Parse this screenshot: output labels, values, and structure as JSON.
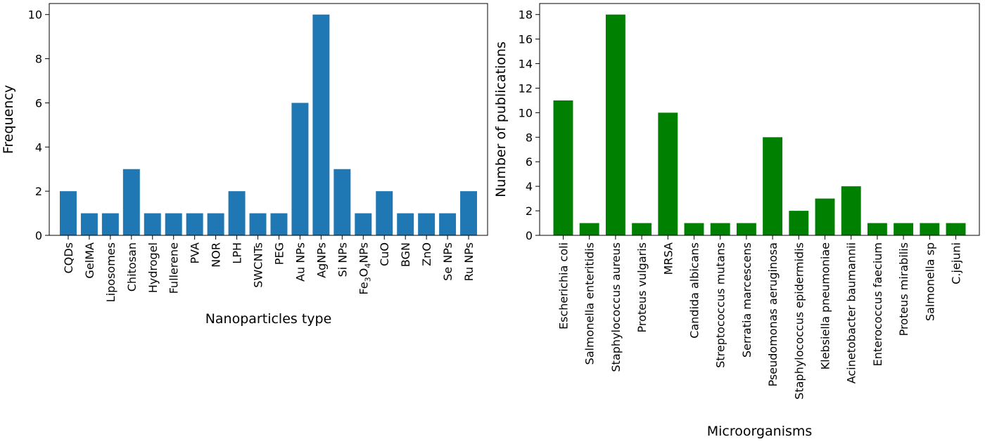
{
  "chart_data": [
    {
      "type": "bar",
      "xlabel": "Nanoparticles type",
      "ylabel": "Frequency",
      "ylim": [
        0,
        10.5
      ],
      "yticks": [
        "0",
        "2",
        "4",
        "6",
        "8",
        "10"
      ],
      "color": "#1f77b4",
      "categories": [
        "CQDs",
        "GelMA",
        "Liposomes",
        "Chitosan",
        "Hydrogel",
        "Fullerene",
        "PVA",
        "NOR",
        "LPH",
        "SWCNTs",
        "PEG",
        "Au NPs",
        "AgNPs",
        "Si NPs",
        "Fe3O4NPs",
        "CuO",
        "BGN",
        "ZnO",
        "Se NPs",
        "Ru NPs"
      ],
      "values": [
        2,
        1,
        1,
        3,
        1,
        1,
        1,
        1,
        2,
        1,
        1,
        6,
        10,
        3,
        1,
        2,
        1,
        1,
        1,
        2
      ]
    },
    {
      "type": "bar",
      "xlabel": "Microorganisms",
      "ylabel": "Number of publications",
      "ylim": [
        0,
        18.9
      ],
      "yticks": [
        "0",
        "2",
        "4",
        "6",
        "8",
        "10",
        "12",
        "14",
        "16",
        "18"
      ],
      "color": "#008000",
      "categories": [
        "Escherichia coli",
        "Salmonella enteritidis",
        "Staphylococcus aureus",
        "Proteus vulgaris",
        "MRSA",
        "Candida albicans",
        "Streptococcus mutans",
        "Serratia marcescens",
        "Pseudomonas aeruginosa",
        "Staphylococcus epidermidis",
        "Klebsiella pneumoniae",
        "Acinetobacter baumannii",
        "Enterococcus faecium",
        "Proteus mirabilis",
        "Salmonella sp",
        "C.jejuni"
      ],
      "values": [
        11,
        1,
        18,
        1,
        10,
        1,
        1,
        1,
        8,
        2,
        3,
        4,
        1,
        1,
        1,
        1
      ]
    }
  ]
}
